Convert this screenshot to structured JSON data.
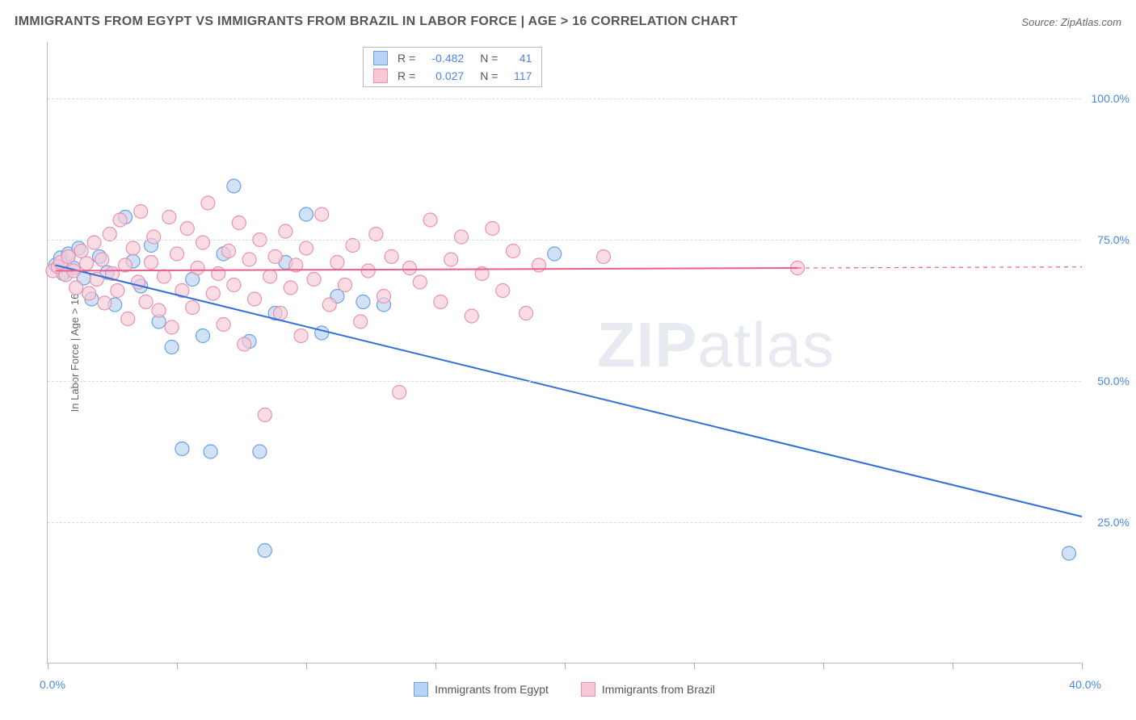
{
  "title": "IMMIGRANTS FROM EGYPT VS IMMIGRANTS FROM BRAZIL IN LABOR FORCE | AGE > 16 CORRELATION CHART",
  "source_label": "Source:",
  "source_name": "ZipAtlas.com",
  "y_axis_title": "In Labor Force | Age > 16",
  "watermark_bold": "ZIP",
  "watermark_light": "atlas",
  "chart": {
    "type": "scatter",
    "xlim": [
      0,
      40
    ],
    "ylim": [
      0,
      110
    ],
    "y_ticks": [
      25,
      50,
      75,
      100
    ],
    "y_tick_labels": [
      "25.0%",
      "50.0%",
      "75.0%",
      "100.0%"
    ],
    "x_tick_positions": [
      0,
      5,
      10,
      15,
      20,
      25,
      30,
      35,
      40
    ],
    "x_label_start": "0.0%",
    "x_label_end": "40.0%",
    "grid_color": "#dcdcdc",
    "background_color": "#ffffff",
    "marker_radius": 8.5,
    "marker_stroke_width": 1.2,
    "line_width": 2,
    "series": [
      {
        "name": "Immigrants from Egypt",
        "fill": "#b9d3f2",
        "stroke": "#6aa0e8",
        "line_color": "#2f6fdc",
        "stats": {
          "R": "-0.482",
          "N": "41"
        },
        "trend": {
          "x1": 0.3,
          "y1": 70.5,
          "x2": 40,
          "y2": 26
        },
        "dash_from_x": 40,
        "points": [
          [
            0.3,
            70.5
          ],
          [
            0.5,
            71.8
          ],
          [
            0.6,
            69.0
          ],
          [
            0.8,
            72.5
          ],
          [
            1.0,
            70.0
          ],
          [
            1.2,
            73.5
          ],
          [
            1.4,
            68.2
          ],
          [
            1.7,
            64.5
          ],
          [
            2.0,
            72.0
          ],
          [
            2.3,
            69.2
          ],
          [
            2.6,
            63.5
          ],
          [
            3.0,
            79.0
          ],
          [
            3.3,
            71.2
          ],
          [
            3.6,
            66.8
          ],
          [
            4.0,
            74.0
          ],
          [
            4.3,
            60.5
          ],
          [
            4.8,
            56.0
          ],
          [
            5.2,
            38.0
          ],
          [
            5.6,
            68.0
          ],
          [
            6.0,
            58.0
          ],
          [
            6.3,
            37.5
          ],
          [
            6.8,
            72.5
          ],
          [
            7.2,
            84.5
          ],
          [
            7.8,
            57.0
          ],
          [
            8.2,
            37.5
          ],
          [
            8.4,
            20.0
          ],
          [
            8.8,
            62.0
          ],
          [
            9.2,
            71.0
          ],
          [
            10.0,
            79.5
          ],
          [
            10.6,
            58.5
          ],
          [
            11.2,
            65.0
          ],
          [
            12.2,
            64.0
          ],
          [
            13.0,
            63.5
          ],
          [
            19.6,
            72.5
          ],
          [
            39.5,
            19.5
          ]
        ]
      },
      {
        "name": "Immigrants from Brazil",
        "fill": "#f7c9d6",
        "stroke": "#ea92ad",
        "line_color": "#e85f8c",
        "stats": {
          "R": "0.027",
          "N": "117"
        },
        "trend": {
          "x1": 0.3,
          "y1": 69.5,
          "x2": 29.0,
          "y2": 70.0
        },
        "dash_from_x": 29.0,
        "points": [
          [
            0.2,
            69.5
          ],
          [
            0.4,
            70.2
          ],
          [
            0.5,
            71.0
          ],
          [
            0.7,
            68.8
          ],
          [
            0.8,
            72.0
          ],
          [
            1.0,
            69.5
          ],
          [
            1.1,
            66.5
          ],
          [
            1.3,
            73.0
          ],
          [
            1.5,
            70.8
          ],
          [
            1.6,
            65.5
          ],
          [
            1.8,
            74.5
          ],
          [
            1.9,
            68.0
          ],
          [
            2.1,
            71.5
          ],
          [
            2.2,
            63.8
          ],
          [
            2.4,
            76.0
          ],
          [
            2.5,
            69.0
          ],
          [
            2.7,
            66.0
          ],
          [
            2.8,
            78.5
          ],
          [
            3.0,
            70.5
          ],
          [
            3.1,
            61.0
          ],
          [
            3.3,
            73.5
          ],
          [
            3.5,
            67.5
          ],
          [
            3.6,
            80.0
          ],
          [
            3.8,
            64.0
          ],
          [
            4.0,
            71.0
          ],
          [
            4.1,
            75.5
          ],
          [
            4.3,
            62.5
          ],
          [
            4.5,
            68.5
          ],
          [
            4.7,
            79.0
          ],
          [
            4.8,
            59.5
          ],
          [
            5.0,
            72.5
          ],
          [
            5.2,
            66.0
          ],
          [
            5.4,
            77.0
          ],
          [
            5.6,
            63.0
          ],
          [
            5.8,
            70.0
          ],
          [
            6.0,
            74.5
          ],
          [
            6.2,
            81.5
          ],
          [
            6.4,
            65.5
          ],
          [
            6.6,
            69.0
          ],
          [
            6.8,
            60.0
          ],
          [
            7.0,
            73.0
          ],
          [
            7.2,
            67.0
          ],
          [
            7.4,
            78.0
          ],
          [
            7.6,
            56.5
          ],
          [
            7.8,
            71.5
          ],
          [
            8.0,
            64.5
          ],
          [
            8.2,
            75.0
          ],
          [
            8.4,
            44.0
          ],
          [
            8.6,
            68.5
          ],
          [
            8.8,
            72.0
          ],
          [
            9.0,
            62.0
          ],
          [
            9.2,
            76.5
          ],
          [
            9.4,
            66.5
          ],
          [
            9.6,
            70.5
          ],
          [
            9.8,
            58.0
          ],
          [
            10.0,
            73.5
          ],
          [
            10.3,
            68.0
          ],
          [
            10.6,
            79.5
          ],
          [
            10.9,
            63.5
          ],
          [
            11.2,
            71.0
          ],
          [
            11.5,
            67.0
          ],
          [
            11.8,
            74.0
          ],
          [
            12.1,
            60.5
          ],
          [
            12.4,
            69.5
          ],
          [
            12.7,
            76.0
          ],
          [
            13.0,
            65.0
          ],
          [
            13.3,
            72.0
          ],
          [
            13.6,
            48.0
          ],
          [
            14.0,
            70.0
          ],
          [
            14.4,
            67.5
          ],
          [
            14.8,
            78.5
          ],
          [
            15.2,
            64.0
          ],
          [
            15.6,
            71.5
          ],
          [
            16.0,
            75.5
          ],
          [
            16.4,
            61.5
          ],
          [
            16.8,
            69.0
          ],
          [
            17.2,
            77.0
          ],
          [
            17.6,
            66.0
          ],
          [
            18.0,
            73.0
          ],
          [
            18.5,
            62.0
          ],
          [
            19.0,
            70.5
          ],
          [
            21.5,
            72.0
          ],
          [
            29.0,
            70.0
          ]
        ]
      }
    ]
  },
  "stat_labels": {
    "R": "R =",
    "N": "N ="
  },
  "legend_series": [
    "Immigrants from Egypt",
    "Immigrants from Brazil"
  ]
}
